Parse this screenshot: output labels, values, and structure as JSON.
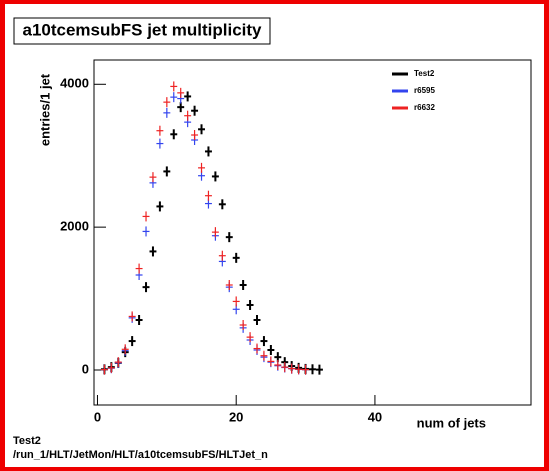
{
  "chart_data": {
    "type": "scatter",
    "title": "a10tcemsubFS jet multiplicity",
    "ylabel": "entries/1 jet",
    "xlabel": "num of jets",
    "x": [
      1,
      2,
      3,
      4,
      5,
      6,
      7,
      8,
      9,
      10,
      11,
      12,
      13,
      14,
      15,
      16,
      17,
      18,
      19,
      20,
      21,
      22,
      23,
      24,
      25,
      26,
      27,
      28,
      29,
      30,
      31,
      32
    ],
    "series": [
      {
        "name": "Test2",
        "color": "#000000",
        "values": [
          10,
          40,
          100,
          250,
          405,
          700,
          1160,
          1660,
          2290,
          2780,
          3300,
          3680,
          3830,
          3630,
          3370,
          3060,
          2710,
          2320,
          1860,
          1570,
          1190,
          910,
          700,
          405,
          280,
          180,
          110,
          55,
          30,
          15,
          10,
          5
        ]
      },
      {
        "name": "r6595",
        "color": "#3344ee",
        "values": [
          5,
          25,
          100,
          270,
          730,
          1330,
          1940,
          2620,
          3170,
          3600,
          3820,
          3800,
          3470,
          3220,
          2720,
          2330,
          1880,
          1520,
          1160,
          850,
          590,
          420,
          280,
          180,
          110,
          60,
          35,
          18,
          8,
          4,
          null,
          null
        ]
      },
      {
        "name": "r6632",
        "color": "#ee2222",
        "values": [
          5,
          30,
          110,
          290,
          750,
          1420,
          2150,
          2700,
          3350,
          3750,
          3970,
          3880,
          3560,
          3290,
          2830,
          2440,
          1930,
          1600,
          1190,
          960,
          630,
          460,
          300,
          200,
          120,
          70,
          40,
          20,
          10,
          5,
          null,
          null
        ]
      }
    ],
    "xlim": [
      -0.5,
      62.5
    ],
    "ylim": [
      -490,
      4340
    ],
    "xticks": [
      0,
      20,
      40
    ],
    "yticks": [
      0,
      2000,
      4000
    ],
    "legend": "top-right"
  },
  "footer": {
    "run": "Test2",
    "path": "/run_1/HLT/JetMon/HLT/a10tcemsubFS/HLTJet_n"
  }
}
